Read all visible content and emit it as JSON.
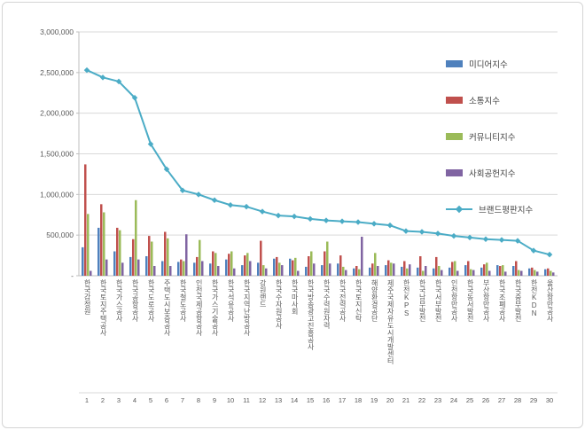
{
  "chart_data": {
    "type": "bar",
    "title": "",
    "xlabel": "",
    "ylabel": "",
    "ylim": [
      0,
      3000000
    ],
    "ytick_step": 500000,
    "ytick_labels": [
      "-",
      "500,000",
      "1,000,000",
      "1,500,000",
      "2,000,000",
      "2,500,000",
      "3,000,000"
    ],
    "grid": true,
    "legend_position": "right-inside",
    "categories": [
      "한국감정원",
      "한국토지주택공사",
      "한국가스공사",
      "한국공항공사",
      "한국도로공사",
      "주택도시보증공사",
      "한국철도공사",
      "인천국제공항공사",
      "한국가스기술공사",
      "한국석유공사",
      "한국지역난방공사",
      "강원랜드",
      "한국수자원공사",
      "한국마사회",
      "한국방송광고진흥공사",
      "한국수력원자력",
      "한국전력공사",
      "한국토지신탁",
      "해양환경공단",
      "제주국제자유도시개발센터",
      "한전KPS",
      "한국남부발전",
      "한국서부발전",
      "인천항만공사",
      "한국동서발전",
      "부산항만공사",
      "한국조폐공사",
      "한국중부발전",
      "한전KDN",
      "울산항만공사"
    ],
    "ranks": [
      1,
      2,
      3,
      4,
      5,
      6,
      7,
      8,
      9,
      10,
      11,
      12,
      13,
      14,
      15,
      16,
      17,
      18,
      19,
      20,
      21,
      22,
      23,
      24,
      25,
      26,
      27,
      28,
      29,
      30
    ],
    "series": [
      {
        "name": "미디어지수",
        "type": "bar",
        "color": "#4F81BD",
        "values": [
          350000,
          590000,
          300000,
          230000,
          240000,
          180000,
          170000,
          160000,
          150000,
          200000,
          130000,
          160000,
          210000,
          210000,
          110000,
          130000,
          150000,
          90000,
          100000,
          130000,
          110000,
          100000,
          90000,
          100000,
          130000,
          100000,
          130000,
          120000,
          90000,
          80000
        ]
      },
      {
        "name": "소통지수",
        "type": "bar",
        "color": "#C0504D",
        "values": [
          1370000,
          880000,
          590000,
          450000,
          490000,
          540000,
          200000,
          230000,
          300000,
          270000,
          250000,
          430000,
          230000,
          190000,
          240000,
          300000,
          250000,
          120000,
          150000,
          190000,
          180000,
          240000,
          230000,
          170000,
          180000,
          140000,
          120000,
          180000,
          100000,
          90000
        ]
      },
      {
        "name": "커뮤니티지수",
        "type": "bar",
        "color": "#9BBB59",
        "values": [
          760000,
          780000,
          560000,
          930000,
          420000,
          460000,
          180000,
          440000,
          280000,
          300000,
          280000,
          130000,
          160000,
          220000,
          300000,
          420000,
          110000,
          80000,
          280000,
          160000,
          90000,
          60000,
          120000,
          180000,
          80000,
          160000,
          130000,
          70000,
          70000,
          60000
        ]
      },
      {
        "name": "사회공헌지수",
        "type": "bar",
        "color": "#8064A2",
        "values": [
          60000,
          200000,
          160000,
          200000,
          120000,
          120000,
          510000,
          180000,
          120000,
          90000,
          180000,
          90000,
          130000,
          60000,
          150000,
          150000,
          70000,
          480000,
          120000,
          150000,
          140000,
          120000,
          70000,
          60000,
          70000,
          60000,
          50000,
          60000,
          50000,
          40000
        ]
      },
      {
        "name": "브랜드평판지수",
        "type": "line",
        "color": "#4BACC6",
        "values": [
          2530000,
          2440000,
          2390000,
          2190000,
          1620000,
          1310000,
          1050000,
          1000000,
          930000,
          870000,
          850000,
          790000,
          740000,
          730000,
          700000,
          680000,
          670000,
          660000,
          640000,
          620000,
          550000,
          540000,
          520000,
          490000,
          470000,
          450000,
          440000,
          430000,
          310000,
          260000
        ]
      }
    ]
  }
}
